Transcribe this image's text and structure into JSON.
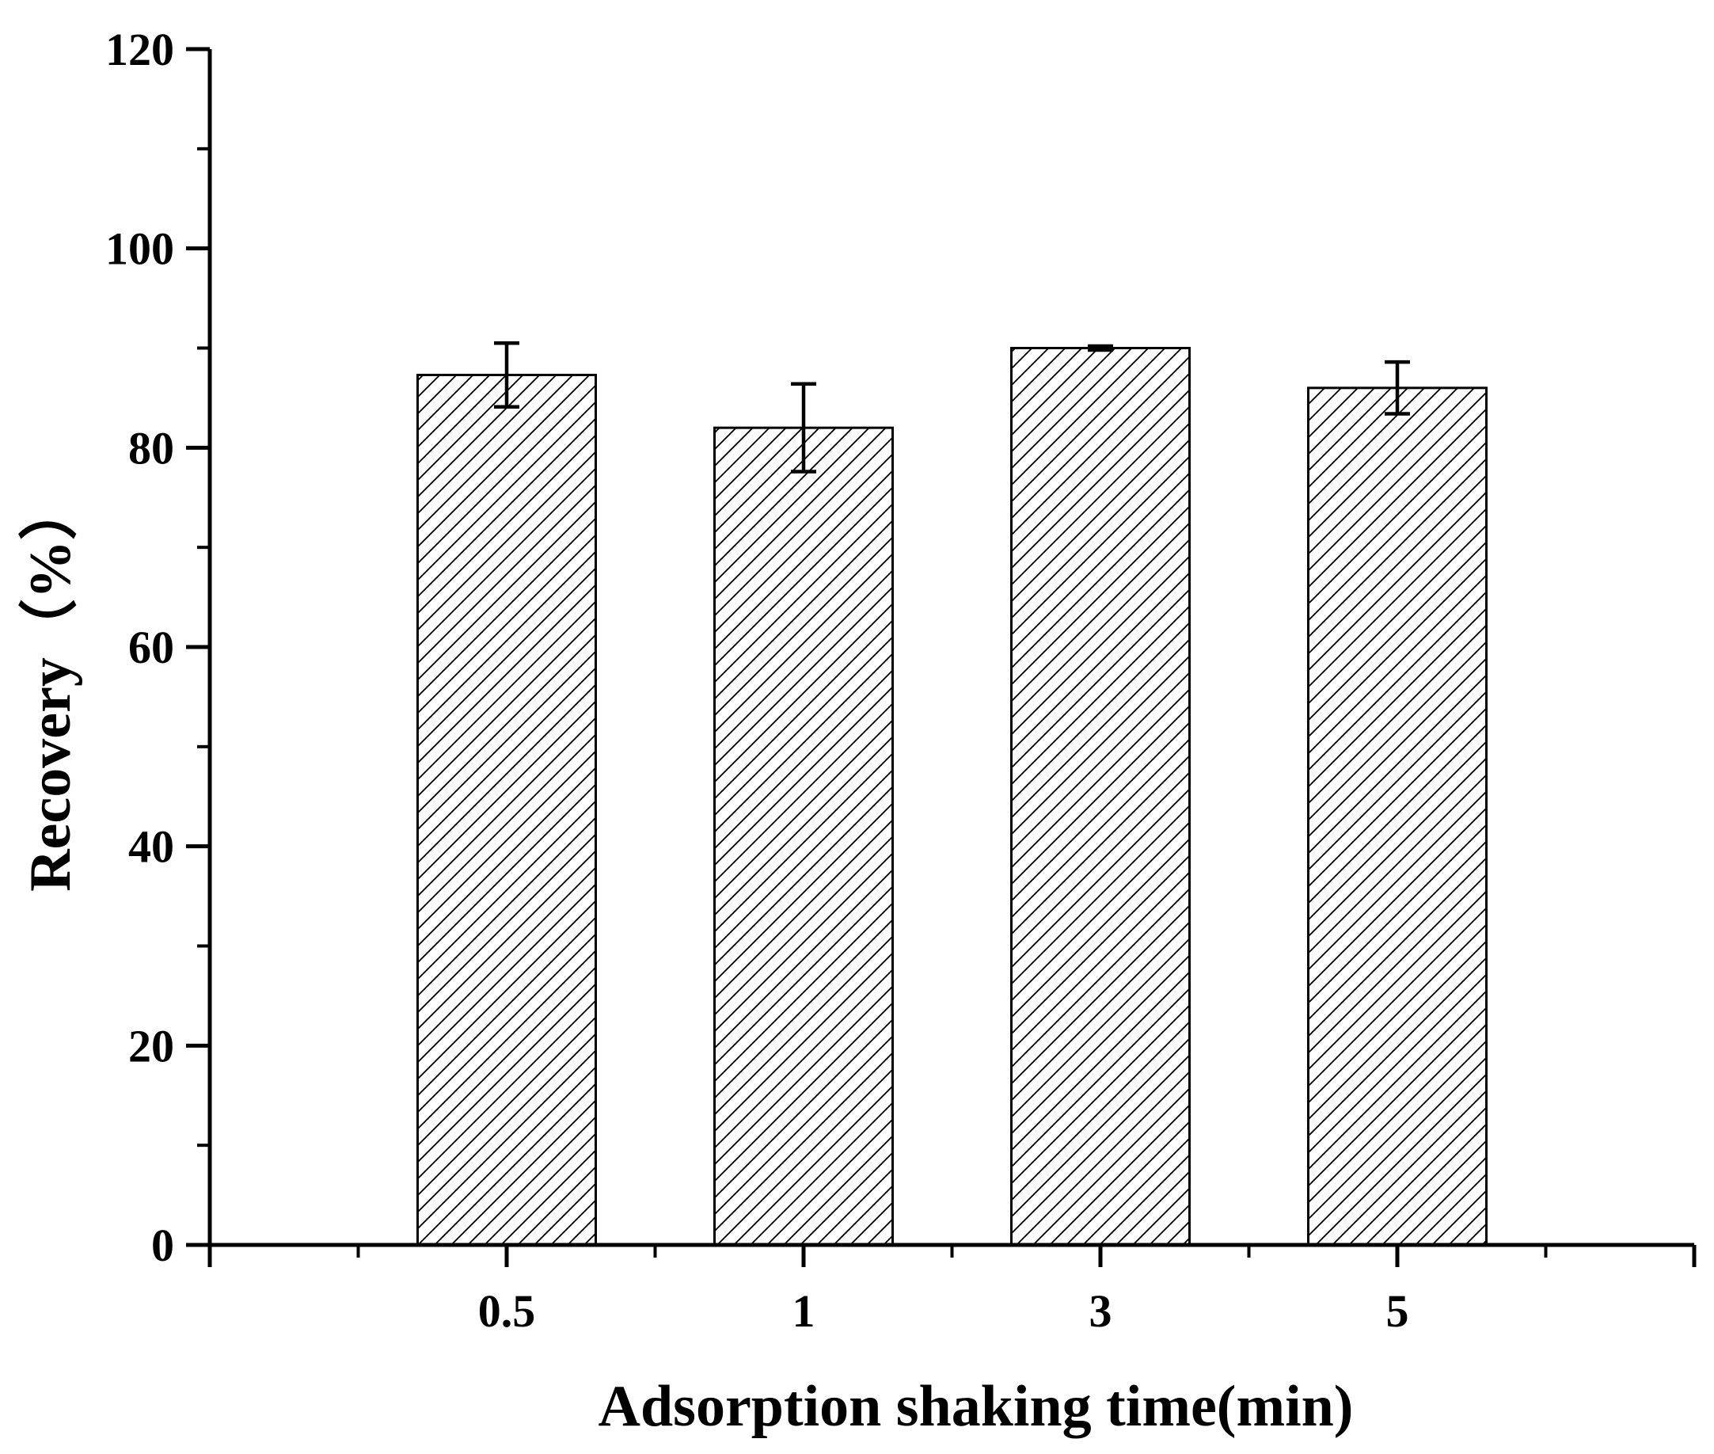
{
  "chart_data": {
    "type": "bar",
    "title": "",
    "xlabel": "Adsorption shaking time(min)",
    "ylabel": "Recovery（%）",
    "categories": [
      "0.5",
      "1",
      "3",
      "5"
    ],
    "values": [
      87.3,
      82.0,
      90.0,
      86.0
    ],
    "errors": [
      3.2,
      4.4,
      0.2,
      2.6
    ],
    "ylim": [
      0,
      120
    ],
    "yticks": [
      0,
      20,
      40,
      60,
      80,
      100,
      120
    ],
    "yticks_minor_step": 10,
    "bar_fill": "hatched",
    "bar_color": "#ffffff",
    "edge_color": "#000000",
    "grid": false,
    "legend": "none"
  }
}
